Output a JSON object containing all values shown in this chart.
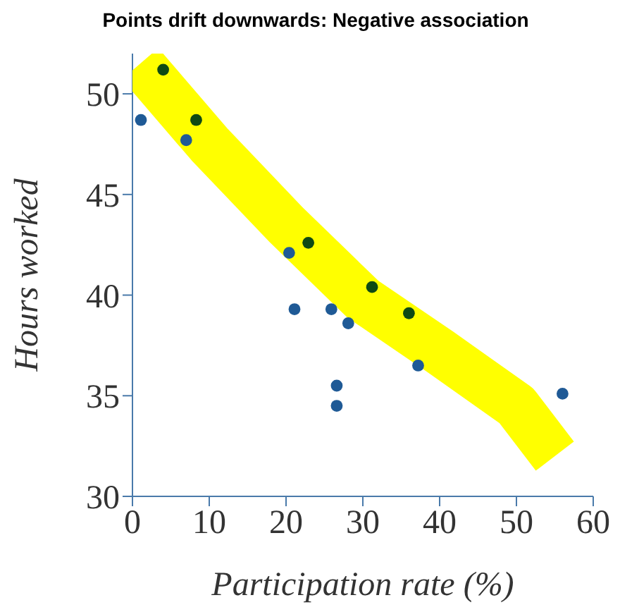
{
  "chart_data": {
    "type": "scatter",
    "title": "Points drift downwards: Negative association",
    "xlabel": "Participation rate (%)",
    "ylabel": "Hours worked",
    "xlim": [
      0,
      60
    ],
    "xticks": [
      0,
      10,
      20,
      30,
      40,
      50,
      60
    ],
    "ylim": [
      30,
      52
    ],
    "yticks": [
      30,
      35,
      40,
      45,
      50
    ],
    "marker": "circle",
    "series": [
      {
        "type": "line",
        "marker": "none",
        "color": "#ffff00",
        "x": [
          1,
          10,
          20,
          30,
          40,
          50,
          55
        ],
        "values": [
          51.5,
          47.5,
          43.5,
          39.8,
          37.2,
          34.5,
          32
        ]
      },
      {
        "x": [
          1.1,
          4.0,
          7.0,
          8.3,
          20.4,
          22.9,
          21.1,
          25.9,
          28.1,
          31.2,
          26.6,
          26.6,
          37.2,
          36.0,
          56.0
        ],
        "values": [
          48.7,
          51.2,
          47.7,
          48.7,
          42.1,
          42.6,
          39.3,
          39.3,
          38.6,
          40.4,
          35.5,
          34.5,
          36.5,
          39.1,
          35.1
        ],
        "colors": [
          "#1f5a96",
          "#0f4a14",
          "#1f5a96",
          "#0f4a14",
          "#1f5a96",
          "#0f4a14",
          "#1f5a96",
          "#1f5a96",
          "#1f5a96",
          "#0f4a14",
          "#1f5a96",
          "#1f5a96",
          "#1f5a96",
          "#0f4a14",
          "#1f5a96"
        ]
      }
    ]
  }
}
